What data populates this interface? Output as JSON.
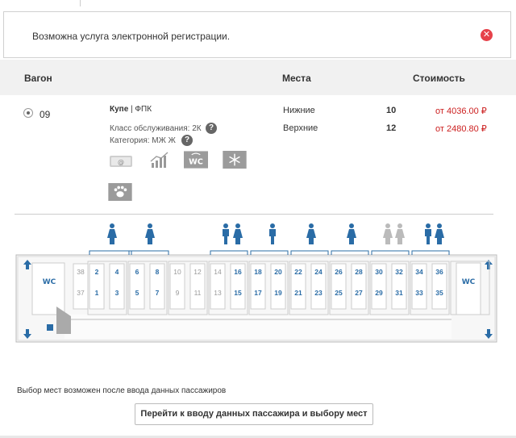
{
  "notice": {
    "text": "Возможна услуга электронной регистрации.",
    "close_icon": "close-icon",
    "accent": "#e6424a"
  },
  "table_header": {
    "wagon": "Вагон",
    "seats": "Места",
    "cost": "Стоимость"
  },
  "wagon": {
    "number": "09",
    "type_bold": "Купе",
    "type_rest": " | ФПК",
    "service_class": "Класс обслуживания: 2К",
    "category": "Категория: МЖ Ж",
    "amenities": [
      "e-ticket-icon",
      "chart-icon",
      "wc-icon",
      "snowflake-icon",
      "pet-icon"
    ]
  },
  "places": [
    {
      "label": "Нижние",
      "count": "10",
      "price": "от 4036.00 ₽"
    },
    {
      "label": "Верхние",
      "count": "12",
      "price": "от 2480.80 ₽"
    }
  ],
  "scheme": {
    "wc_label": "WC",
    "compartments": [
      {
        "top": [
          "38",
          "37"
        ],
        "bottom": [
          "2",
          "1"
        ],
        "gender": "none"
      },
      {
        "top": [
          "4",
          "3"
        ],
        "bottom": [
          "4",
          "3"
        ],
        "gender": "female"
      },
      {
        "top": [
          "6",
          "5"
        ],
        "bottom": [
          "6",
          "5"
        ],
        "gender": "female"
      },
      {
        "top": [
          "8",
          "7"
        ],
        "bottom": [
          "8",
          "7"
        ],
        "gender": "none"
      },
      {
        "top": [
          "10",
          "9"
        ],
        "bottom": [
          "10",
          "9"
        ],
        "gender": "none"
      },
      {
        "top": [
          "12",
          "11"
        ],
        "bottom": [
          "12",
          "11"
        ],
        "gender": "none"
      }
    ],
    "top_numbers": [
      "38",
      "2",
      "4",
      "6",
      "8",
      "10",
      "12",
      "14",
      "16",
      "18",
      "20",
      "22",
      "24",
      "26",
      "28",
      "30",
      "32",
      "34",
      "36"
    ],
    "bottom_numbers": [
      "37",
      "1",
      "3",
      "5",
      "7",
      "9",
      "11",
      "13",
      "15",
      "17",
      "19",
      "21",
      "23",
      "25",
      "27",
      "29",
      "31",
      "33",
      "35"
    ],
    "available": [
      "2",
      "1",
      "4",
      "3",
      "6",
      "5",
      "8",
      "7",
      "16",
      "15",
      "18",
      "17",
      "20",
      "19",
      "22",
      "21",
      "24",
      "23",
      "26",
      "25",
      "28",
      "27",
      "30",
      "29",
      "32",
      "31",
      "34",
      "33",
      "36",
      "35"
    ],
    "accent": "#2a6ca6",
    "muted": "#999999"
  },
  "footer": {
    "note": "Выбор мест возможен после ввода данных пассажиров",
    "button": "Перейти к вводу данных пассажира и выбору мест"
  }
}
